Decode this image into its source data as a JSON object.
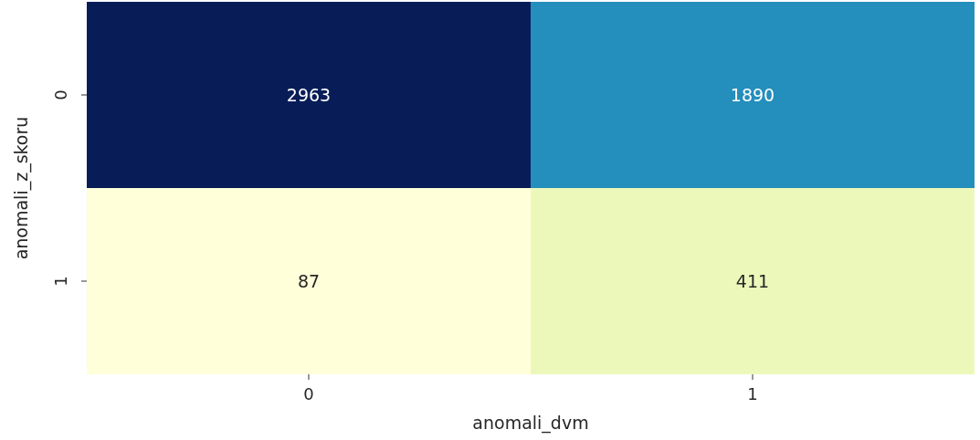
{
  "chart_data": {
    "type": "heatmap",
    "xlabel": "anomali_dvm",
    "ylabel": "anomali_z_skoru",
    "categories": [
      "0",
      "1"
    ],
    "y_categories": [
      "0",
      "1"
    ],
    "cells": [
      [
        2963,
        1890
      ],
      [
        87,
        411
      ]
    ],
    "data_labels": true
  }
}
